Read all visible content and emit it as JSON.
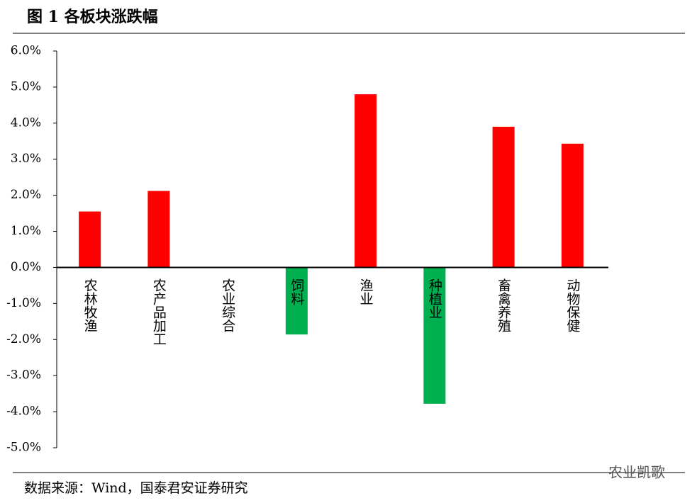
{
  "chart_data": {
    "type": "bar",
    "title": "图 1  各板块涨跌幅",
    "categories": [
      "农林牧渔",
      "农产品加工",
      "农业综合",
      "饲料",
      "渔业",
      "种植业",
      "畜禽养殖",
      "动物保健"
    ],
    "values": [
      1.55,
      2.12,
      0,
      -1.86,
      4.8,
      -3.78,
      3.9,
      3.43
    ],
    "color_positive": "#ff0000",
    "color_negative": "#00b050",
    "ylim": [
      -5,
      6
    ],
    "yticks": [
      {
        "value": 6,
        "label": "6.0%"
      },
      {
        "value": 5,
        "label": "5.0%"
      },
      {
        "value": 4,
        "label": "4.0%"
      },
      {
        "value": 3,
        "label": "3.0%"
      },
      {
        "value": 2,
        "label": "2.0%"
      },
      {
        "value": 1,
        "label": "1.0%"
      },
      {
        "value": 0,
        "label": "0.0%"
      },
      {
        "value": -1,
        "label": "-1.0%"
      },
      {
        "value": -2,
        "label": "-2.0%"
      },
      {
        "value": -3,
        "label": "-3.0%"
      },
      {
        "value": -4,
        "label": "-4.0%"
      },
      {
        "value": -5,
        "label": "-5.0%"
      }
    ],
    "source": "数据来源：Wind，国泰君安证券研究",
    "watermark": "农业凯歌"
  }
}
